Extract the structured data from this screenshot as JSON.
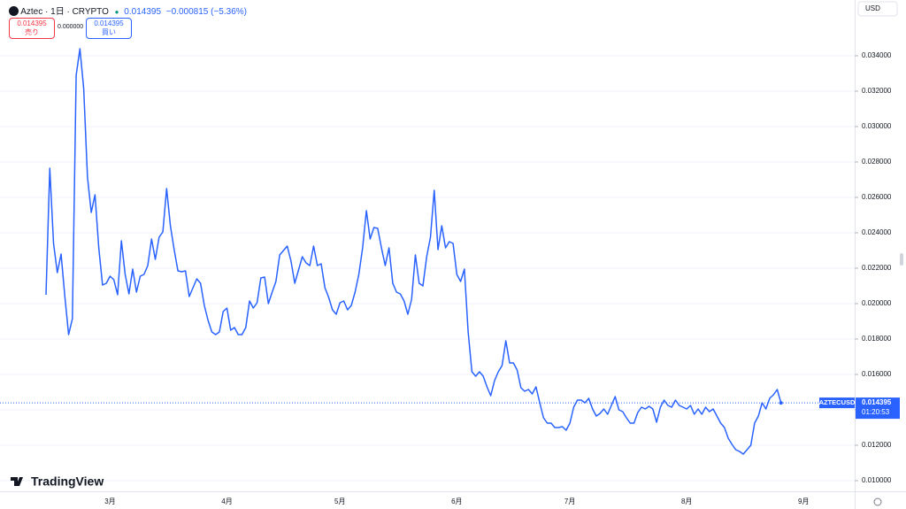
{
  "header": {
    "symbol": "Aztec · 1日 · CRYPTO",
    "change": "−0.000815 (−5.36%)",
    "sell": {
      "price": "0.014395",
      "label": "売り"
    },
    "spread": "0.000000",
    "buy": {
      "price": "0.014395",
      "label": "買い"
    },
    "currency": "USD",
    "ticker_tag": "AZTECUSD",
    "countdown": "01:20:53",
    "logo": "TradingView"
  },
  "chart_data": {
    "type": "line",
    "color": "#2962ff",
    "categories": [
      null,
      null,
      null,
      null,
      null,
      null,
      null,
      null,
      null,
      null,
      null,
      null,
      null,
      null,
      null,
      null,
      null,
      "3月",
      null,
      null,
      null,
      null,
      null,
      null,
      null,
      null,
      null,
      null,
      null,
      null,
      null,
      null,
      null,
      null,
      null,
      null,
      null,
      null,
      null,
      null,
      null,
      null,
      null,
      null,
      null,
      null,
      null,
      null,
      "4月",
      null,
      null,
      null,
      null,
      null,
      null,
      null,
      null,
      null,
      null,
      null,
      null,
      null,
      null,
      null,
      null,
      null,
      null,
      null,
      null,
      null,
      null,
      null,
      null,
      null,
      null,
      null,
      null,
      null,
      "5月",
      null,
      null,
      null,
      null,
      null,
      null,
      null,
      null,
      null,
      null,
      null,
      null,
      null,
      null,
      null,
      null,
      null,
      null,
      null,
      null,
      null,
      null,
      null,
      null,
      null,
      null,
      null,
      null,
      null,
      null,
      "6月",
      null,
      null,
      null,
      null,
      null,
      null,
      null,
      null,
      null,
      null,
      null,
      null,
      null,
      null,
      null,
      null,
      null,
      null,
      null,
      null,
      null,
      null,
      null,
      null,
      null,
      null,
      null,
      null,
      null,
      "7月",
      null,
      null,
      null,
      null,
      null,
      null,
      null,
      null,
      null,
      null,
      null,
      null,
      null,
      null,
      null,
      null,
      null,
      null,
      null,
      null,
      null,
      null,
      null,
      null,
      null,
      null,
      null,
      null,
      null,
      null,
      "8月",
      null,
      null,
      null,
      null,
      null,
      null,
      null,
      null,
      null,
      null,
      null,
      null,
      null,
      null,
      null,
      null,
      null,
      null,
      null,
      null,
      null,
      null,
      null,
      null,
      null,
      null,
      null,
      null,
      null,
      null,
      "9月"
    ],
    "values": [
      0.0205,
      0.02765,
      0.0234,
      0.02175,
      0.0228,
      0.0204,
      0.01825,
      0.01915,
      0.0329,
      0.0344,
      0.03215,
      0.02715,
      0.02515,
      0.02615,
      0.02315,
      0.02105,
      0.02115,
      0.02155,
      0.02135,
      0.0205,
      0.02355,
      0.02165,
      0.02055,
      0.02195,
      0.02065,
      0.02155,
      0.02165,
      0.02215,
      0.02365,
      0.0225,
      0.02375,
      0.02405,
      0.0265,
      0.0244,
      0.02305,
      0.02185,
      0.0218,
      0.02185,
      0.0204,
      0.0209,
      0.0214,
      0.02115,
      0.0199,
      0.01905,
      0.0184,
      0.01825,
      0.0184,
      0.01955,
      0.01975,
      0.0185,
      0.01865,
      0.01825,
      0.01825,
      0.01865,
      0.02015,
      0.01975,
      0.02005,
      0.02145,
      0.0215,
      0.02,
      0.02065,
      0.02125,
      0.02275,
      0.023,
      0.02325,
      0.0224,
      0.02115,
      0.0219,
      0.02265,
      0.0223,
      0.02215,
      0.02325,
      0.02215,
      0.02225,
      0.0209,
      0.02035,
      0.01965,
      0.0194,
      0.02005,
      0.02015,
      0.01965,
      0.0199,
      0.02065,
      0.02165,
      0.02315,
      0.02525,
      0.02365,
      0.0243,
      0.02425,
      0.02315,
      0.02215,
      0.02315,
      0.02115,
      0.02065,
      0.02055,
      0.02015,
      0.0194,
      0.02025,
      0.02275,
      0.02115,
      0.021,
      0.02265,
      0.02375,
      0.0264,
      0.02305,
      0.0244,
      0.02315,
      0.0235,
      0.0234,
      0.02165,
      0.02125,
      0.02195,
      0.0184,
      0.01615,
      0.0159,
      0.01615,
      0.0159,
      0.0153,
      0.0148,
      0.01565,
      0.01615,
      0.0165,
      0.0179,
      0.01665,
      0.01665,
      0.01625,
      0.01525,
      0.01505,
      0.01515,
      0.0149,
      0.0153,
      0.0144,
      0.01355,
      0.01325,
      0.01325,
      0.013,
      0.013,
      0.01305,
      0.01285,
      0.01325,
      0.01415,
      0.01455,
      0.01455,
      0.0144,
      0.01465,
      0.01405,
      0.01365,
      0.0138,
      0.01405,
      0.01375,
      0.01425,
      0.01475,
      0.014,
      0.0139,
      0.01355,
      0.01325,
      0.01325,
      0.01385,
      0.01415,
      0.01405,
      0.0142,
      0.01405,
      0.0133,
      0.01415,
      0.01455,
      0.01425,
      0.01415,
      0.01455,
      0.01425,
      0.01415,
      0.01405,
      0.01425,
      0.01375,
      0.01405,
      0.01375,
      0.01415,
      0.0139,
      0.01405,
      0.01365,
      0.01325,
      0.013,
      0.0124,
      0.01205,
      0.01175,
      0.01165,
      0.0115,
      0.01175,
      0.012,
      0.01325,
      0.01365,
      0.0144,
      0.01405,
      0.01465,
      0.01485,
      0.01515,
      0.014395,
      null,
      null,
      null,
      null,
      null,
      null
    ],
    "ylim": [
      0.0094,
      0.03715
    ],
    "yticks": [
      {
        "value": 0.01,
        "label": "0.010000"
      },
      {
        "value": 0.012,
        "label": "0.012000"
      },
      {
        "value": 0.014,
        "label": "0.014000"
      },
      {
        "value": 0.016,
        "label": "0.016000"
      },
      {
        "value": 0.018,
        "label": "0.018000"
      },
      {
        "value": 0.02,
        "label": "0.020000"
      },
      {
        "value": 0.022,
        "label": "0.022000"
      },
      {
        "value": 0.024,
        "label": "0.024000"
      },
      {
        "value": 0.026,
        "label": "0.026000"
      },
      {
        "value": 0.028,
        "label": "0.028000"
      },
      {
        "value": 0.03,
        "label": "0.030000"
      },
      {
        "value": 0.032,
        "label": "0.032000"
      },
      {
        "value": 0.034,
        "label": "0.034000"
      }
    ],
    "grid": true
  }
}
